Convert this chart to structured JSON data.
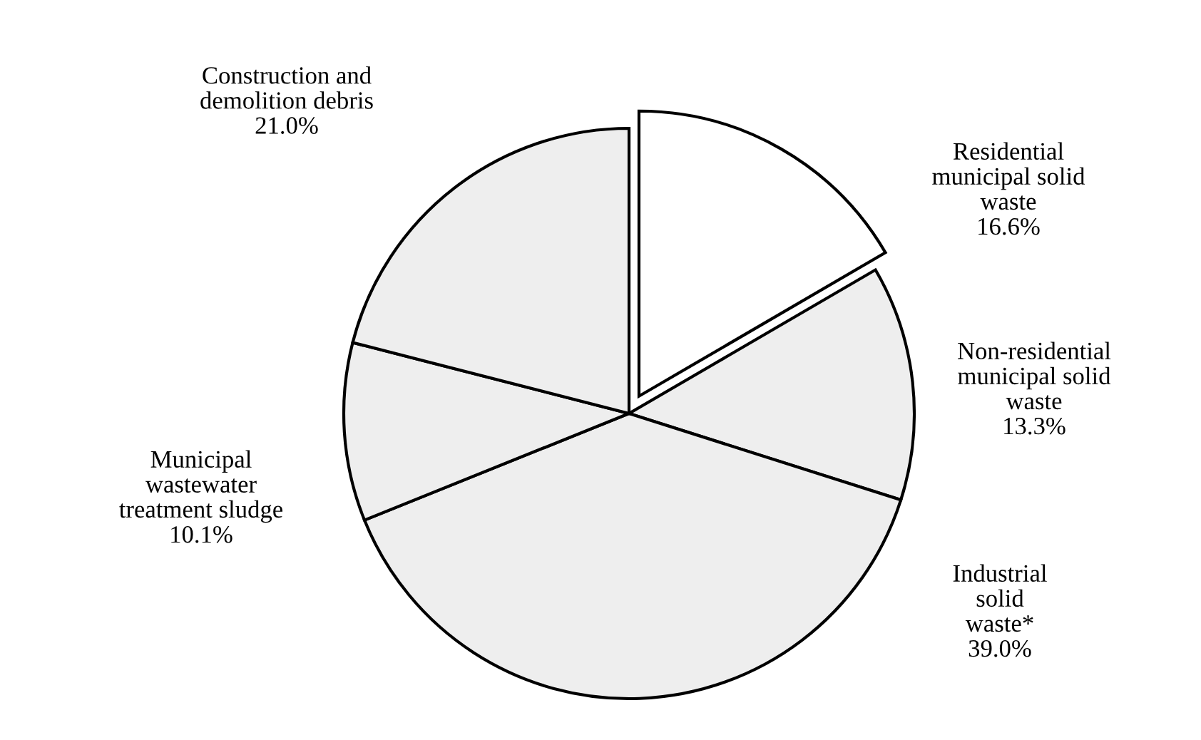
{
  "chart_data": {
    "type": "pie",
    "categories": [
      "Residential\nmunicipal solid\nwaste",
      "Non-residential\nmunicipal solid\nwaste",
      "Industrial\nsolid\nwaste*",
      "Municipal\nwastewater\ntreatment sludge",
      "Construction and\ndemolition debris"
    ],
    "values": [
      16.6,
      13.3,
      39.0,
      10.1,
      21.0
    ],
    "value_labels": [
      "16.6%",
      "13.3%",
      "39.0%",
      "10.1%",
      "21.0%"
    ],
    "colors": [
      "#ffffff",
      "#eeeeee",
      "#eeeeee",
      "#eeeeee",
      "#eeeeee"
    ]
  }
}
